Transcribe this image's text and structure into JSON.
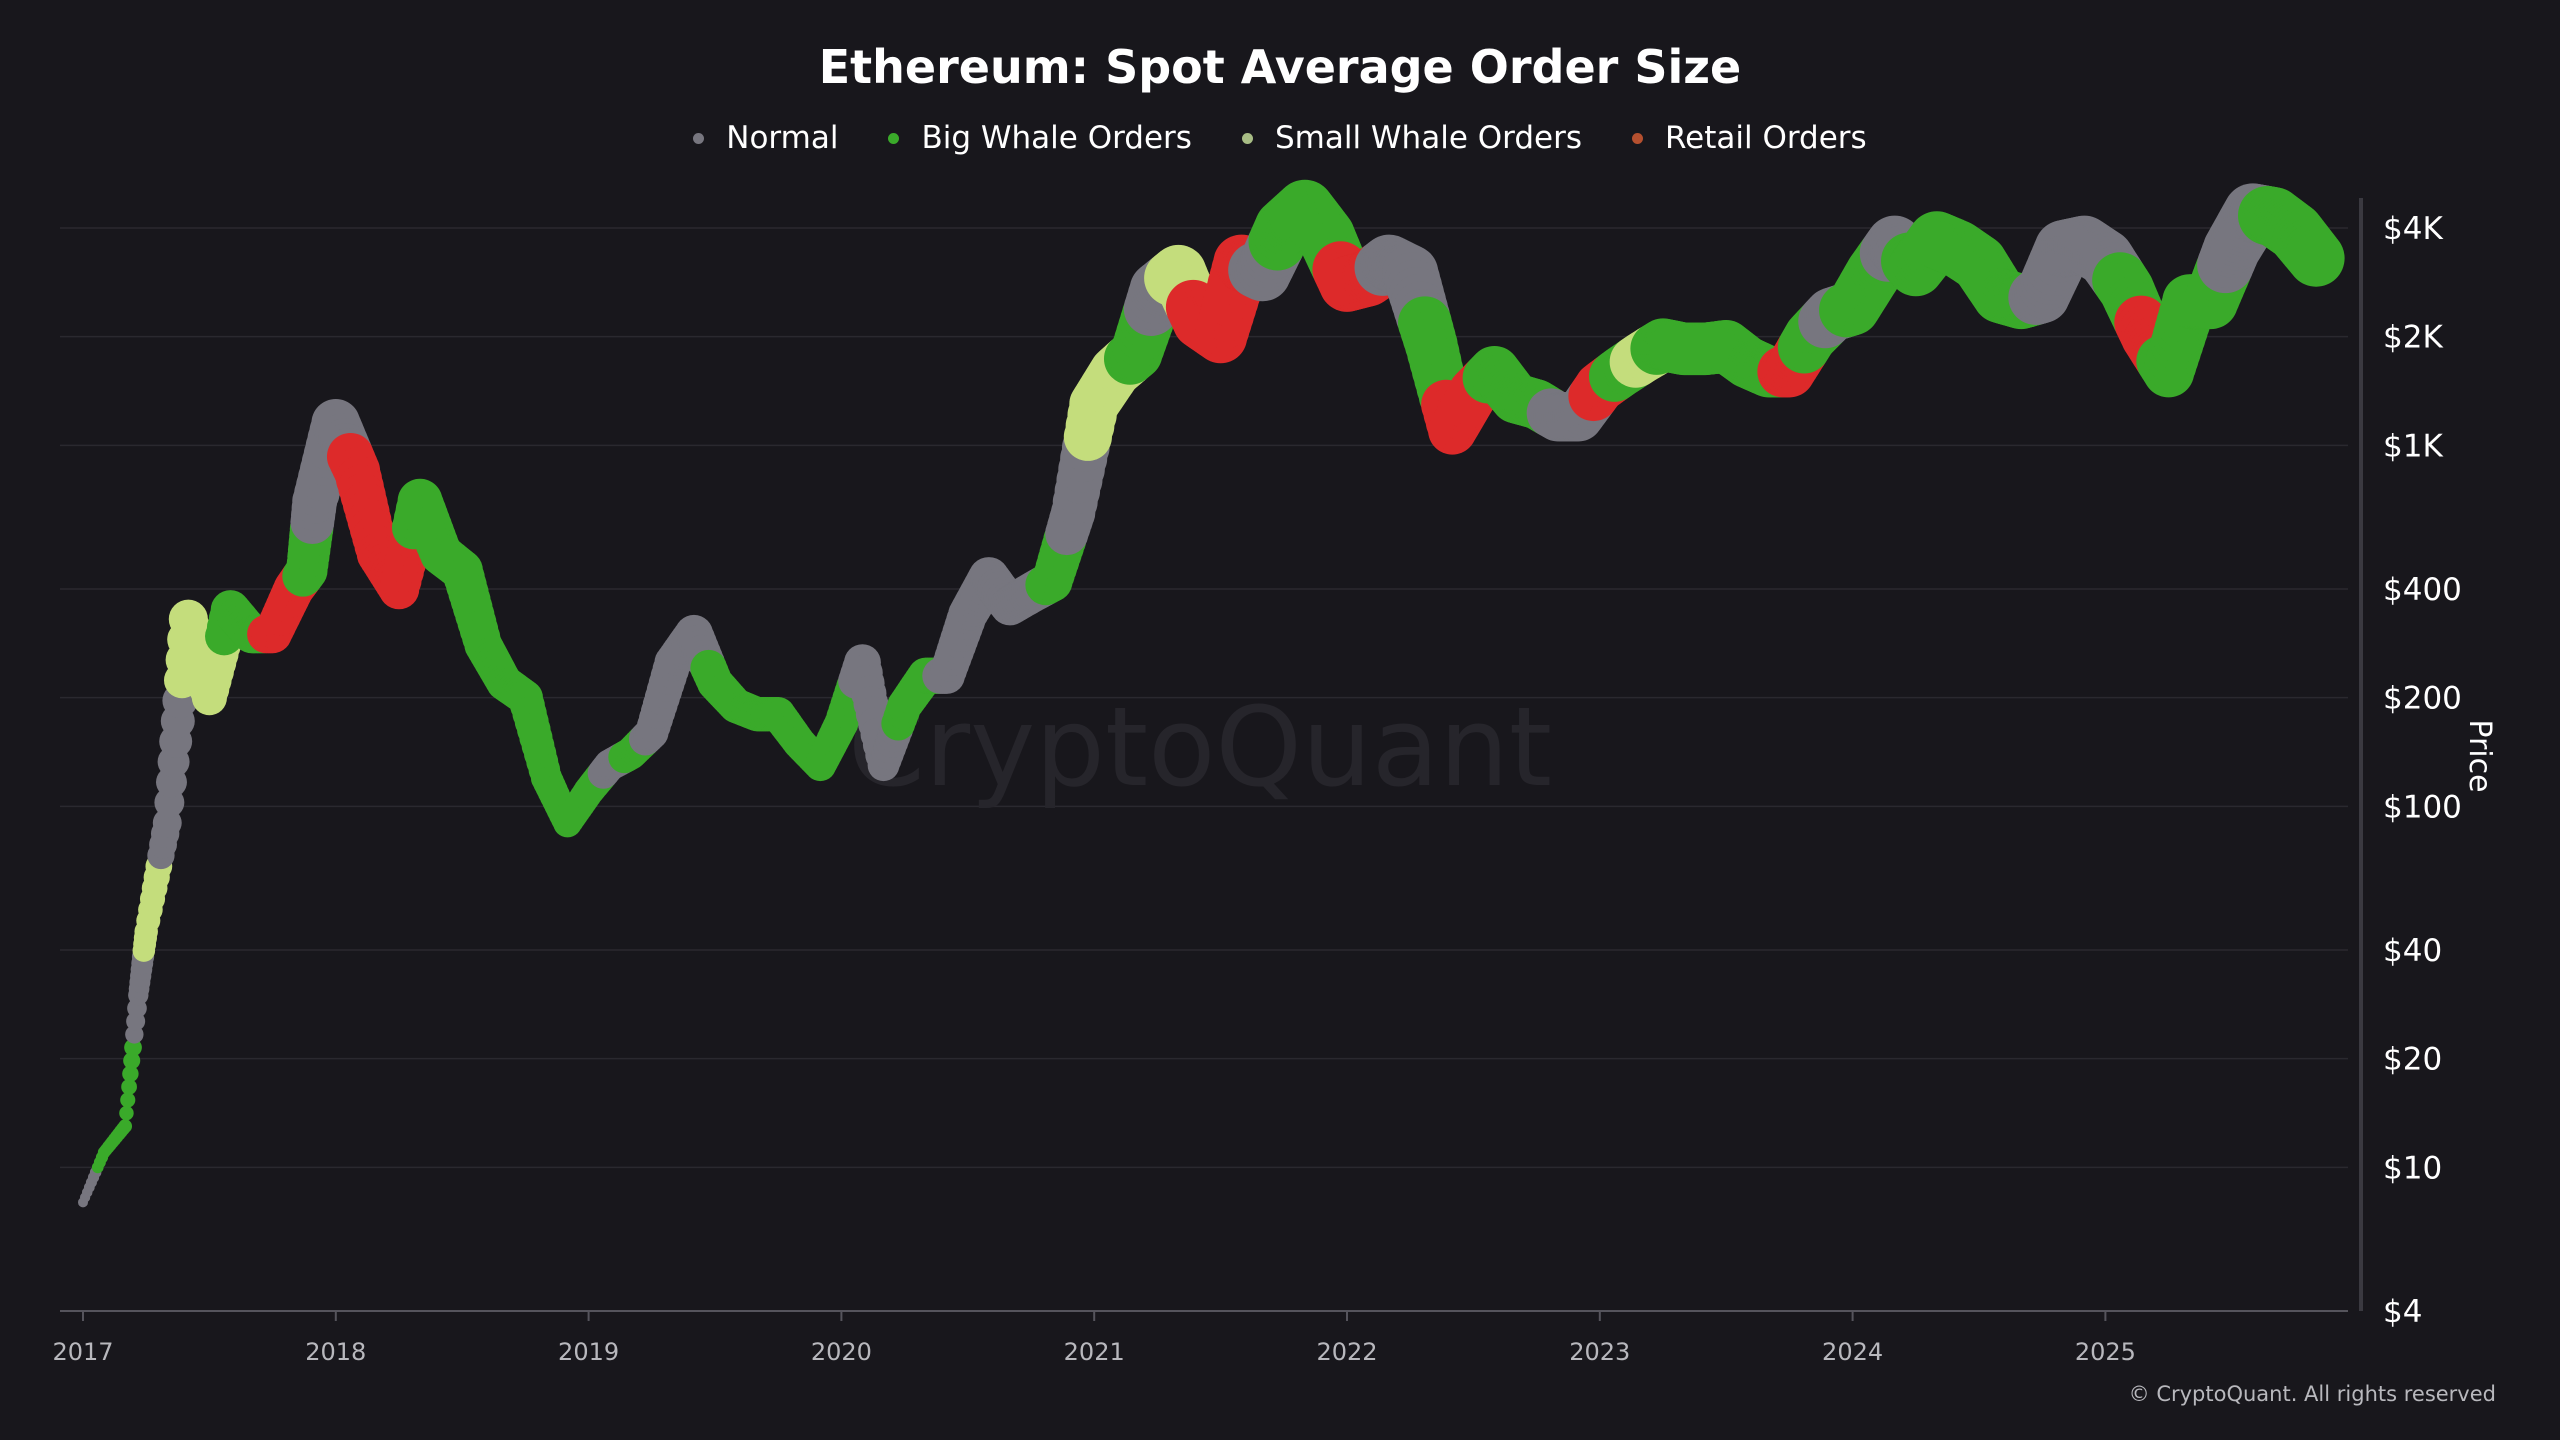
{
  "chart_data": {
    "type": "scatter",
    "title": "Ethereum: Spot Average Order Size",
    "ylabel": "Price",
    "yscale": "log",
    "ylim": [
      4,
      5000
    ],
    "y_ticks": [
      {
        "v": 4,
        "label": "$4"
      },
      {
        "v": 10,
        "label": "$10"
      },
      {
        "v": 20,
        "label": "$20"
      },
      {
        "v": 40,
        "label": "$40"
      },
      {
        "v": 100,
        "label": "$100"
      },
      {
        "v": 200,
        "label": "$200"
      },
      {
        "v": 400,
        "label": "$400"
      },
      {
        "v": 1000,
        "label": "$1K"
      },
      {
        "v": 2000,
        "label": "$2K"
      },
      {
        "v": 4000,
        "label": "$4K"
      }
    ],
    "x_ticks": [
      "2017",
      "2018",
      "2019",
      "2020",
      "2021",
      "2022",
      "2023",
      "2024",
      "2025"
    ],
    "grid": true,
    "legend_position": "top",
    "series": [
      {
        "key": "normal",
        "name": "Normal",
        "color": "#77767f"
      },
      {
        "key": "big",
        "name": "Big Whale Orders",
        "color": "#3aaa2a"
      },
      {
        "key": "small",
        "name": "Small Whale Orders",
        "color": "#c4dd7c"
      },
      {
        "key": "retail",
        "name": "Retail Orders",
        "color": "#dd2a2a",
        "legend_color": "#b5502f"
      }
    ],
    "points": [
      [
        "2017-01",
        8,
        "normal"
      ],
      [
        "2017-02",
        11,
        "big"
      ],
      [
        "2017-03",
        13,
        "big"
      ],
      [
        "2017-03-20",
        30,
        "normal"
      ],
      [
        "2017-04",
        45,
        "small"
      ],
      [
        "2017-05",
        90,
        "normal"
      ],
      [
        "2017-06",
        330,
        "small"
      ],
      [
        "2017-07",
        200,
        "small"
      ],
      [
        "2017-08",
        350,
        "big"
      ],
      [
        "2017-09",
        300,
        "big"
      ],
      [
        "2017-10",
        300,
        "retail"
      ],
      [
        "2017-11",
        400,
        "retail"
      ],
      [
        "2017-11-20",
        450,
        "big"
      ],
      [
        "2017-12",
        700,
        "normal"
      ],
      [
        "2018-01",
        1150,
        "normal"
      ],
      [
        "2018-02",
        850,
        "retail"
      ],
      [
        "2018-03",
        500,
        "retail"
      ],
      [
        "2018-04",
        400,
        "retail"
      ],
      [
        "2018-05",
        700,
        "big"
      ],
      [
        "2018-06",
        500,
        "big"
      ],
      [
        "2018-07",
        450,
        "big"
      ],
      [
        "2018-08",
        280,
        "big"
      ],
      [
        "2018-09",
        220,
        "big"
      ],
      [
        "2018-10",
        200,
        "big"
      ],
      [
        "2018-11",
        120,
        "big"
      ],
      [
        "2018-12",
        90,
        "big"
      ],
      [
        "2019-01",
        110,
        "big"
      ],
      [
        "2019-02",
        130,
        "normal"
      ],
      [
        "2019-03",
        140,
        "big"
      ],
      [
        "2019-04",
        160,
        "normal"
      ],
      [
        "2019-05",
        250,
        "normal"
      ],
      [
        "2019-06",
        300,
        "normal"
      ],
      [
        "2019-07",
        220,
        "big"
      ],
      [
        "2019-08",
        190,
        "big"
      ],
      [
        "2019-09",
        180,
        "big"
      ],
      [
        "2019-10",
        180,
        "big"
      ],
      [
        "2019-11",
        150,
        "big"
      ],
      [
        "2019-12",
        130,
        "big"
      ],
      [
        "2020-01",
        170,
        "big"
      ],
      [
        "2020-02",
        250,
        "normal"
      ],
      [
        "2020-03",
        130,
        "normal"
      ],
      [
        "2020-04",
        190,
        "big"
      ],
      [
        "2020-05",
        230,
        "big"
      ],
      [
        "2020-06",
        230,
        "normal"
      ],
      [
        "2020-07",
        340,
        "normal"
      ],
      [
        "2020-08",
        430,
        "normal"
      ],
      [
        "2020-09",
        360,
        "normal"
      ],
      [
        "2020-10",
        390,
        "normal"
      ],
      [
        "2020-11",
        420,
        "big"
      ],
      [
        "2020-12",
        650,
        "normal"
      ],
      [
        "2021-01",
        1300,
        "small"
      ],
      [
        "2021-02",
        1600,
        "small"
      ],
      [
        "2021-03",
        1800,
        "big"
      ],
      [
        "2021-04",
        2700,
        "normal"
      ],
      [
        "2021-05",
        3000,
        "small"
      ],
      [
        "2021-06",
        2200,
        "retail"
      ],
      [
        "2021-07",
        2000,
        "retail"
      ],
      [
        "2021-08",
        3200,
        "retail"
      ],
      [
        "2021-09",
        3000,
        "normal"
      ],
      [
        "2021-10",
        4000,
        "big"
      ],
      [
        "2021-11",
        4500,
        "big"
      ],
      [
        "2021-12",
        3800,
        "big"
      ],
      [
        "2022-01",
        2800,
        "retail"
      ],
      [
        "2022-02",
        2900,
        "retail"
      ],
      [
        "2022-03",
        3200,
        "normal"
      ],
      [
        "2022-04",
        3000,
        "normal"
      ],
      [
        "2022-05",
        1900,
        "big"
      ],
      [
        "2022-06",
        1100,
        "retail"
      ],
      [
        "2022-07",
        1400,
        "retail"
      ],
      [
        "2022-08",
        1600,
        "big"
      ],
      [
        "2022-09",
        1350,
        "big"
      ],
      [
        "2022-10",
        1300,
        "big"
      ],
      [
        "2022-11",
        1200,
        "normal"
      ],
      [
        "2022-12",
        1200,
        "normal"
      ],
      [
        "2023-01",
        1450,
        "retail"
      ],
      [
        "2023-02",
        1600,
        "big"
      ],
      [
        "2023-03",
        1750,
        "small"
      ],
      [
        "2023-04",
        1900,
        "big"
      ],
      [
        "2023-05",
        1850,
        "big"
      ],
      [
        "2023-06",
        1850,
        "big"
      ],
      [
        "2023-07",
        1880,
        "big"
      ],
      [
        "2023-08",
        1700,
        "big"
      ],
      [
        "2023-09",
        1600,
        "big"
      ],
      [
        "2023-10",
        1600,
        "retail"
      ],
      [
        "2023-11",
        2000,
        "big"
      ],
      [
        "2023-12",
        2300,
        "normal"
      ],
      [
        "2024-01",
        2400,
        "big"
      ],
      [
        "2024-02",
        3000,
        "big"
      ],
      [
        "2024-03",
        3600,
        "normal"
      ],
      [
        "2024-04",
        3100,
        "big"
      ],
      [
        "2024-05",
        3700,
        "big"
      ],
      [
        "2024-06",
        3500,
        "big"
      ],
      [
        "2024-07",
        3200,
        "big"
      ],
      [
        "2024-08",
        2600,
        "big"
      ],
      [
        "2024-09",
        2500,
        "big"
      ],
      [
        "2024-10",
        2600,
        "normal"
      ],
      [
        "2024-11",
        3500,
        "normal"
      ],
      [
        "2024-12",
        3600,
        "normal"
      ],
      [
        "2025-01",
        3300,
        "normal"
      ],
      [
        "2025-02",
        2700,
        "big"
      ],
      [
        "2025-03",
        2000,
        "retail"
      ],
      [
        "2025-04",
        1600,
        "big"
      ],
      [
        "2025-05",
        2500,
        "big"
      ],
      [
        "2025-06",
        2500,
        "big"
      ],
      [
        "2025-07",
        3500,
        "normal"
      ],
      [
        "2025-08",
        4400,
        "normal"
      ],
      [
        "2025-09",
        4300,
        "big"
      ],
      [
        "2025-10",
        3900,
        "big"
      ],
      [
        "2025-11",
        3300,
        "big"
      ]
    ],
    "watermark": "CryptoQuant"
  },
  "footer": {
    "copyright": "© CryptoQuant. All rights reserved"
  }
}
